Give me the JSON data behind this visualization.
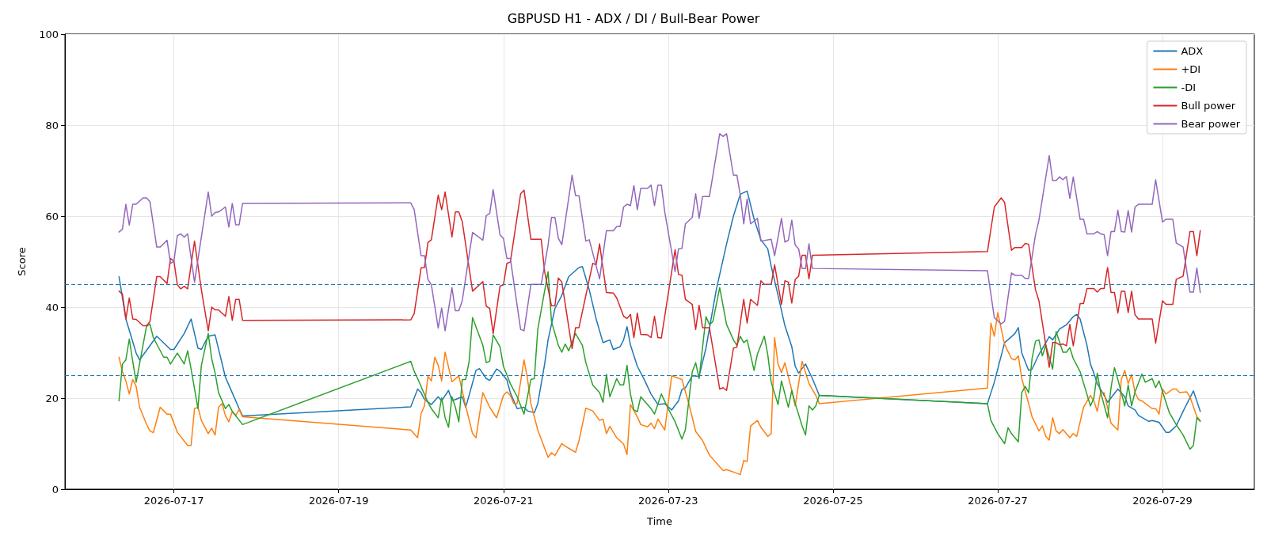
{
  "chart_data": {
    "type": "line",
    "title": "GBPUSD H1 - ADX / DI / Bull-Bear Power",
    "xlabel": "Time",
    "ylabel": "Score",
    "xlim": [
      "2026-07-15T16:15",
      "2026-07-30T02:45"
    ],
    "xticks": [
      "2026-07-17",
      "2026-07-19",
      "2026-07-21",
      "2026-07-23",
      "2026-07-25",
      "2026-07-27",
      "2026-07-29"
    ],
    "ylim": [
      0,
      100
    ],
    "yticks": [
      0,
      20,
      40,
      60,
      80,
      100
    ],
    "grid": true,
    "legend": "top right",
    "marker": "none",
    "line_style": "solid",
    "ref_lines": [
      {
        "axis": "y",
        "value": 45,
        "color": "#1f77b4",
        "line_style": "dashed"
      },
      {
        "axis": "y",
        "value": 25,
        "color": "#1f77b4",
        "line_style": "dashed"
      }
    ],
    "series": [
      {
        "name": "ADX",
        "color": "#1f77b4",
        "x": [
          "2026-07-16T08:00",
          "2026-07-16T10:00",
          "2026-07-16T13:00",
          "2026-07-16T14:00",
          "2026-07-16T19:00",
          "2026-07-16T23:00",
          "2026-07-17T00:00",
          "2026-07-17T03:00",
          "2026-07-17T05:00",
          "2026-07-17T07:00",
          "2026-07-17T08:00",
          "2026-07-17T10:00",
          "2026-07-17T12:00",
          "2026-07-17T15:00",
          "2026-07-17T16:00",
          "2026-07-17T19:00",
          "2026-07-17T20:00",
          "2026-07-19T21:00",
          "2026-07-19T23:00",
          "2026-07-20T00:00",
          "2026-07-20T01:00",
          "2026-07-20T03:00",
          "2026-07-20T05:00",
          "2026-07-20T06:00",
          "2026-07-20T08:00",
          "2026-07-20T09:00",
          "2026-07-20T10:00",
          "2026-07-20T12:00",
          "2026-07-20T13:00",
          "2026-07-20T14:00",
          "2026-07-20T16:00",
          "2026-07-20T17:00",
          "2026-07-20T19:00",
          "2026-07-20T20:00",
          "2026-07-20T22:00",
          "2026-07-20T23:00",
          "2026-07-21T01:00",
          "2026-07-21T02:00",
          "2026-07-21T04:00",
          "2026-07-21T06:00",
          "2026-07-21T07:00",
          "2026-07-21T09:00",
          "2026-07-21T10:00",
          "2026-07-21T12:00",
          "2026-07-21T13:00",
          "2026-07-21T15:00",
          "2026-07-21T17:00",
          "2026-07-21T19:00",
          "2026-07-21T22:00",
          "2026-07-21T23:00",
          "2026-07-22T01:00",
          "2026-07-22T03:00",
          "2026-07-22T05:00",
          "2026-07-22T07:00",
          "2026-07-22T08:00",
          "2026-07-22T10:00",
          "2026-07-22T11:00",
          "2026-07-22T12:00",
          "2026-07-22T13:00",
          "2026-07-22T15:00",
          "2026-07-22T17:00",
          "2026-07-22T19:00",
          "2026-07-22T21:00",
          "2026-07-22T23:00",
          "2026-07-23T01:00",
          "2026-07-23T03:00",
          "2026-07-23T04:00",
          "2026-07-23T05:00",
          "2026-07-23T07:00",
          "2026-07-23T09:00",
          "2026-07-23T11:00",
          "2026-07-23T14:00",
          "2026-07-23T17:00",
          "2026-07-23T19:00",
          "2026-07-23T21:00",
          "2026-07-23T23:00",
          "2026-07-24T01:00",
          "2026-07-24T03:00",
          "2026-07-24T05:00",
          "2026-07-24T06:00",
          "2026-07-24T08:00",
          "2026-07-24T10:00",
          "2026-07-24T12:00",
          "2026-07-24T13:00",
          "2026-07-24T14:00",
          "2026-07-24T16:00",
          "2026-07-24T18:00",
          "2026-07-24T20:00",
          "2026-07-26T21:00",
          "2026-07-26T23:00",
          "2026-07-27T02:00",
          "2026-07-27T04:00",
          "2026-07-27T05:00",
          "2026-07-27T06:00",
          "2026-07-27T07:00",
          "2026-07-27T09:00",
          "2026-07-27T10:00",
          "2026-07-27T12:00",
          "2026-07-27T15:00",
          "2026-07-27T16:00",
          "2026-07-27T18:00",
          "2026-07-27T20:00",
          "2026-07-27T22:00",
          "2026-07-27T23:00",
          "2026-07-28T00:00",
          "2026-07-28T02:00",
          "2026-07-28T03:00",
          "2026-07-28T04:00",
          "2026-07-28T05:00",
          "2026-07-28T07:00",
          "2026-07-28T08:00",
          "2026-07-28T11:00",
          "2026-07-28T13:00",
          "2026-07-28T14:00",
          "2026-07-28T16:00",
          "2026-07-28T17:00",
          "2026-07-28T20:00",
          "2026-07-28T21:00",
          "2026-07-28T23:00",
          "2026-07-29T01:00",
          "2026-07-29T02:00",
          "2026-07-29T04:00",
          "2026-07-29T06:00",
          "2026-07-29T09:00",
          "2026-07-29T11:00"
        ],
        "values": [
          46.7,
          37.4,
          29.9,
          28.4,
          33.6,
          30.7,
          30.7,
          34.2,
          37.4,
          31,
          30.7,
          33.6,
          33.9,
          24.6,
          22.9,
          17.7,
          16.1,
          18.1,
          22,
          21.2,
          19.7,
          18.6,
          20.3,
          19.4,
          21.7,
          19.5,
          19.7,
          20.3,
          18,
          20.6,
          26.1,
          26.5,
          24.3,
          23.9,
          26.4,
          25.9,
          24,
          21.2,
          17.7,
          18,
          17.2,
          16.8,
          18.8,
          27.5,
          32.8,
          39.7,
          42.6,
          46.7,
          48.7,
          48.9,
          43.8,
          37.4,
          32.2,
          32.8,
          30.7,
          31.3,
          32.8,
          35.7,
          31.7,
          27,
          24.1,
          20.9,
          18.6,
          18.8,
          17.4,
          19.4,
          21.9,
          22.3,
          24.9,
          24.8,
          31,
          43.8,
          53.9,
          60,
          64.8,
          65.5,
          59.4,
          54.8,
          52.8,
          49,
          42.6,
          35.9,
          31.3,
          27,
          25.5,
          27.5,
          24.3,
          20.6,
          18.8,
          23.5,
          32.2,
          33.5,
          34.2,
          35.5,
          29.9,
          26.1,
          26.4,
          29.6,
          33.5,
          32.8,
          35.2,
          36.1,
          37.9,
          38.4,
          37.4,
          31.6,
          27.5,
          25.5,
          23.2,
          20.6,
          19.1,
          22,
          20.3,
          18.3,
          17.4,
          16.2,
          14.9,
          15.1,
          14.7,
          12.5,
          12.5,
          13.9,
          17.1,
          21.6,
          17.1
        ]
      },
      {
        "name": "+DI",
        "color": "#ff7f0e",
        "x": [
          "2026-07-16T08:00",
          "2026-07-16T09:00",
          "2026-07-16T10:00",
          "2026-07-16T11:00",
          "2026-07-16T12:00",
          "2026-07-16T13:00",
          "2026-07-16T14:00",
          "2026-07-16T16:00",
          "2026-07-16T17:00",
          "2026-07-16T18:00",
          "2026-07-16T20:00",
          "2026-07-16T22:00",
          "2026-07-16T23:00",
          "2026-07-17T01:00",
          "2026-07-17T04:00",
          "2026-07-17T05:00",
          "2026-07-17T06:00",
          "2026-07-17T07:00",
          "2026-07-17T08:00",
          "2026-07-17T10:00",
          "2026-07-17T11:00",
          "2026-07-17T12:00",
          "2026-07-17T13:00",
          "2026-07-17T14:00",
          "2026-07-17T15:00",
          "2026-07-17T16:00",
          "2026-07-17T17:00",
          "2026-07-17T18:00",
          "2026-07-17T19:00",
          "2026-07-17T20:00",
          "2026-07-19T21:00",
          "2026-07-19T23:00",
          "2026-07-20T00:00",
          "2026-07-20T01:00",
          "2026-07-20T02:00",
          "2026-07-20T03:00",
          "2026-07-20T04:00",
          "2026-07-20T05:00",
          "2026-07-20T06:00",
          "2026-07-20T07:00",
          "2026-07-20T09:00",
          "2026-07-20T11:00",
          "2026-07-20T13:00",
          "2026-07-20T15:00",
          "2026-07-20T16:00",
          "2026-07-20T18:00",
          "2026-07-20T20:00",
          "2026-07-20T22:00",
          "2026-07-21T00:00",
          "2026-07-21T01:00",
          "2026-07-21T02:00",
          "2026-07-21T03:00",
          "2026-07-21T04:00",
          "2026-07-21T06:00",
          "2026-07-21T07:00",
          "2026-07-21T08:00",
          "2026-07-21T10:00",
          "2026-07-21T13:00",
          "2026-07-21T14:00",
          "2026-07-21T15:00",
          "2026-07-21T17:00",
          "2026-07-21T19:00",
          "2026-07-21T21:00",
          "2026-07-21T22:00",
          "2026-07-22T00:00",
          "2026-07-22T02:00",
          "2026-07-22T04:00",
          "2026-07-22T05:00",
          "2026-07-22T06:00",
          "2026-07-22T07:00",
          "2026-07-22T09:00",
          "2026-07-22T11:00",
          "2026-07-22T12:00",
          "2026-07-22T13:00",
          "2026-07-22T15:00",
          "2026-07-22T16:00",
          "2026-07-22T18:00",
          "2026-07-22T19:00",
          "2026-07-22T20:00",
          "2026-07-22T21:00",
          "2026-07-22T22:00",
          "2026-07-22T23:00",
          "2026-07-23T01:00",
          "2026-07-23T04:00",
          "2026-07-23T06:00",
          "2026-07-23T08:00",
          "2026-07-23T10:00",
          "2026-07-23T12:00",
          "2026-07-23T15:00",
          "2026-07-23T16:00",
          "2026-07-23T17:00",
          "2026-07-23T20:00",
          "2026-07-23T21:00",
          "2026-07-23T22:00",
          "2026-07-23T23:00",
          "2026-07-24T00:00",
          "2026-07-24T02:00",
          "2026-07-24T03:00",
          "2026-07-24T05:00",
          "2026-07-24T06:00",
          "2026-07-24T07:00",
          "2026-07-24T08:00",
          "2026-07-24T09:00",
          "2026-07-24T10:00",
          "2026-07-24T12:00",
          "2026-07-24T13:00",
          "2026-07-24T15:00",
          "2026-07-24T17:00",
          "2026-07-24T19:00",
          "2026-07-24T20:00",
          "2026-07-26T21:00",
          "2026-07-26T22:00",
          "2026-07-26T23:00",
          "2026-07-27T00:00",
          "2026-07-27T02:00",
          "2026-07-27T04:00",
          "2026-07-27T05:00",
          "2026-07-27T06:00",
          "2026-07-27T07:00",
          "2026-07-27T09:00",
          "2026-07-27T10:00",
          "2026-07-27T12:00",
          "2026-07-27T13:00",
          "2026-07-27T14:00",
          "2026-07-27T15:00",
          "2026-07-27T16:00",
          "2026-07-27T17:00",
          "2026-07-27T18:00",
          "2026-07-27T19:00",
          "2026-07-27T21:00",
          "2026-07-27T22:00",
          "2026-07-27T23:00",
          "2026-07-28T01:00",
          "2026-07-28T03:00",
          "2026-07-28T04:00",
          "2026-07-28T05:00",
          "2026-07-28T06:00",
          "2026-07-28T07:00",
          "2026-07-28T09:00",
          "2026-07-28T11:00",
          "2026-07-28T12:00",
          "2026-07-28T13:00",
          "2026-07-28T14:00",
          "2026-07-28T15:00",
          "2026-07-28T16:00",
          "2026-07-28T17:00",
          "2026-07-28T18:00",
          "2026-07-28T21:00",
          "2026-07-28T22:00",
          "2026-07-28T23:00",
          "2026-07-29T00:00",
          "2026-07-29T01:00",
          "2026-07-29T03:00",
          "2026-07-29T04:00",
          "2026-07-29T05:00",
          "2026-07-29T07:00",
          "2026-07-29T08:00",
          "2026-07-29T10:00",
          "2026-07-29T11:00"
        ],
        "values": [
          29,
          25.8,
          23.8,
          20.9,
          24.1,
          22.6,
          18,
          14.3,
          12.8,
          12.4,
          18,
          16.5,
          16.5,
          12.5,
          9.6,
          9.6,
          17.7,
          18,
          15.1,
          12.2,
          13.4,
          11.9,
          18,
          18.8,
          16.2,
          14.8,
          17.1,
          16.2,
          17.5,
          15.9,
          13,
          11.3,
          16.6,
          18.3,
          24.8,
          23.8,
          29,
          27.2,
          23.8,
          30.1,
          23.6,
          24.9,
          18.3,
          12.2,
          11.3,
          21.2,
          18,
          15.7,
          20.6,
          21.4,
          20.6,
          18.8,
          18.8,
          28.4,
          24.3,
          18.8,
          13,
          7,
          8,
          7.4,
          10,
          9,
          8.1,
          10.6,
          17.8,
          17.2,
          15.1,
          15.4,
          12.2,
          13.8,
          11.3,
          9.9,
          7.6,
          18.6,
          15.9,
          14.2,
          13.7,
          14.5,
          13.3,
          15.4,
          14.2,
          13,
          24.9,
          24.1,
          18.8,
          12.7,
          10.7,
          7.5,
          4.9,
          4.1,
          4.3,
          3.5,
          3.2,
          6.3,
          6.1,
          13.9,
          15.1,
          13.6,
          11.6,
          12.2,
          33.3,
          27.5,
          25.6,
          27.8,
          21.7,
          18.3,
          28.1,
          23.2,
          20.6,
          18.8,
          22.2,
          36.5,
          33.6,
          38.8,
          31.8,
          28.7,
          28.4,
          29.3,
          24.3,
          18.8,
          15.9,
          12.8,
          13.9,
          11.6,
          10.8,
          15.7,
          12.8,
          12.2,
          13.1,
          11.3,
          12.2,
          11.6,
          18,
          20.6,
          19.4,
          17.1,
          21.4,
          21.2,
          14.5,
          13,
          24.1,
          26.1,
          23.2,
          25.2,
          21.2,
          19.7,
          19.4,
          17.7,
          17.7,
          16.5,
          22,
          20.9,
          22,
          22,
          21.2,
          21.4,
          20.3,
          15.9,
          15.1
        ]
      },
      {
        "name": "-DI",
        "color": "#2ca02c",
        "x": [
          "2026-07-16T08:00",
          "2026-07-16T09:00",
          "2026-07-16T10:00",
          "2026-07-16T11:00",
          "2026-07-16T12:00",
          "2026-07-16T13:00",
          "2026-07-16T16:00",
          "2026-07-16T17:00",
          "2026-07-16T18:00",
          "2026-07-16T21:00",
          "2026-07-16T22:00",
          "2026-07-16T23:00",
          "2026-07-17T01:00",
          "2026-07-17T03:00",
          "2026-07-17T04:00",
          "2026-07-17T05:00",
          "2026-07-17T07:00",
          "2026-07-17T08:00",
          "2026-07-17T10:00",
          "2026-07-17T11:00",
          "2026-07-17T12:00",
          "2026-07-17T13:00",
          "2026-07-17T15:00",
          "2026-07-17T16:00",
          "2026-07-17T17:00",
          "2026-07-17T20:00",
          "2026-07-19T21:00",
          "2026-07-19T22:00",
          "2026-07-19T23:00",
          "2026-07-20T02:00",
          "2026-07-20T03:00",
          "2026-07-20T05:00",
          "2026-07-20T06:00",
          "2026-07-20T07:00",
          "2026-07-20T08:00",
          "2026-07-20T09:00",
          "2026-07-20T10:00",
          "2026-07-20T11:00",
          "2026-07-20T12:00",
          "2026-07-20T13:00",
          "2026-07-20T14:00",
          "2026-07-20T15:00",
          "2026-07-20T18:00",
          "2026-07-20T19:00",
          "2026-07-20T20:00",
          "2026-07-20T21:00",
          "2026-07-20T23:00",
          "2026-07-21T00:00",
          "2026-07-21T02:00",
          "2026-07-21T04:00",
          "2026-07-21T06:00",
          "2026-07-21T08:00",
          "2026-07-21T09:00",
          "2026-07-21T10:00",
          "2026-07-21T13:00",
          "2026-07-21T14:00",
          "2026-07-21T16:00",
          "2026-07-21T17:00",
          "2026-07-21T18:00",
          "2026-07-21T19:00",
          "2026-07-21T21:00",
          "2026-07-21T23:00",
          "2026-07-22T00:00",
          "2026-07-22T02:00",
          "2026-07-22T04:00",
          "2026-07-22T05:00",
          "2026-07-22T06:00",
          "2026-07-22T07:00",
          "2026-07-22T09:00",
          "2026-07-22T10:00",
          "2026-07-22T11:00",
          "2026-07-22T12:00",
          "2026-07-22T13:00",
          "2026-07-22T14:00",
          "2026-07-22T15:00",
          "2026-07-22T16:00",
          "2026-07-22T19:00",
          "2026-07-22T20:00",
          "2026-07-22T22:00",
          "2026-07-23T00:00",
          "2026-07-23T02:00",
          "2026-07-23T04:00",
          "2026-07-23T05:00",
          "2026-07-23T07:00",
          "2026-07-23T08:00",
          "2026-07-23T09:00",
          "2026-07-23T11:00",
          "2026-07-23T12:00",
          "2026-07-23T13:00",
          "2026-07-23T15:00",
          "2026-07-23T17:00",
          "2026-07-23T19:00",
          "2026-07-23T20:00",
          "2026-07-23T21:00",
          "2026-07-23T22:00",
          "2026-07-23T23:00",
          "2026-07-24T01:00",
          "2026-07-24T02:00",
          "2026-07-24T04:00",
          "2026-07-24T05:00",
          "2026-07-24T06:00",
          "2026-07-24T08:00",
          "2026-07-24T09:00",
          "2026-07-24T11:00",
          "2026-07-24T12:00",
          "2026-07-24T13:00",
          "2026-07-24T15:00",
          "2026-07-24T16:00",
          "2026-07-24T17:00",
          "2026-07-24T18:00",
          "2026-07-24T19:00",
          "2026-07-24T20:00",
          "2026-07-26T21:00",
          "2026-07-26T22:00",
          "2026-07-27T00:00",
          "2026-07-27T02:00",
          "2026-07-27T03:00",
          "2026-07-27T04:00",
          "2026-07-27T06:00",
          "2026-07-27T07:00",
          "2026-07-27T08:00",
          "2026-07-27T09:00",
          "2026-07-27T10:00",
          "2026-07-27T11:00",
          "2026-07-27T12:00",
          "2026-07-27T13:00",
          "2026-07-27T14:00",
          "2026-07-27T16:00",
          "2026-07-27T17:00",
          "2026-07-27T19:00",
          "2026-07-27T20:00",
          "2026-07-27T21:00",
          "2026-07-27T22:00",
          "2026-07-28T00:00",
          "2026-07-28T03:00",
          "2026-07-28T04:00",
          "2026-07-28T05:00",
          "2026-07-28T06:00",
          "2026-07-28T08:00",
          "2026-07-28T09:00",
          "2026-07-28T10:00",
          "2026-07-28T11:00",
          "2026-07-28T13:00",
          "2026-07-28T14:00",
          "2026-07-28T15:00",
          "2026-07-28T16:00",
          "2026-07-28T18:00",
          "2026-07-28T19:00",
          "2026-07-28T21:00",
          "2026-07-28T22:00",
          "2026-07-28T23:00",
          "2026-07-29T01:00",
          "2026-07-29T02:00",
          "2026-07-29T04:00",
          "2026-07-29T06:00",
          "2026-07-29T08:00",
          "2026-07-29T09:00",
          "2026-07-29T10:00",
          "2026-07-29T11:00"
        ],
        "values": [
          19.4,
          27.5,
          28.4,
          33,
          28.1,
          23.5,
          35.7,
          36.3,
          33.3,
          29,
          29,
          27.5,
          29.9,
          27.5,
          30.4,
          26.4,
          17.7,
          27.2,
          34.2,
          28.7,
          25.5,
          21.2,
          17.7,
          18.6,
          17.1,
          14.2,
          28.1,
          25.9,
          24.3,
          19.1,
          17.7,
          15.7,
          20.1,
          15.7,
          13.6,
          20.3,
          18,
          14.8,
          24.1,
          24.1,
          28.1,
          37.7,
          31.6,
          27.8,
          28.1,
          33.9,
          31.3,
          27,
          23.2,
          20.3,
          16.5,
          24.1,
          24.3,
          35.1,
          47.8,
          36.8,
          31.6,
          30.1,
          31.9,
          30.4,
          34.2,
          31.6,
          27.8,
          22.9,
          21.2,
          19.1,
          25.2,
          20.3,
          24.3,
          22.9,
          22.9,
          27.2,
          20.9,
          17.4,
          17,
          20.3,
          17.7,
          16.5,
          20.9,
          17.7,
          14.8,
          11,
          13.1,
          25.8,
          27.8,
          24.3,
          37.9,
          36.2,
          36.8,
          44.3,
          36.2,
          32.8,
          31.6,
          33.6,
          32.2,
          32.8,
          26.1,
          29.7,
          33.6,
          29.6,
          23.5,
          18.6,
          23.8,
          18,
          21.7,
          18.8,
          13.9,
          11.9,
          18.3,
          17.4,
          18.3,
          20.6,
          18.8,
          15.1,
          12.2,
          10,
          13.5,
          12.2,
          10.4,
          21.2,
          22.6,
          21.2,
          28.7,
          32.5,
          32.8,
          29.3,
          31.6,
          26.4,
          34.6,
          30.1,
          30.1,
          31.1,
          28.7,
          25.8,
          18.3,
          20,
          25.5,
          21.2,
          15.7,
          22.3,
          26.7,
          24.1,
          18.3,
          22.9,
          18.3,
          21.4,
          25.3,
          23.5,
          24.3,
          22.3,
          23.8,
          19.1,
          16.8,
          14.2,
          11.9,
          8.8,
          9.6,
          15.7,
          14.9
        ]
      },
      {
        "name": "Bull power",
        "color": "#d62728",
        "x": [
          "2026-07-16T08:00",
          "2026-07-16T09:00",
          "2026-07-16T10:00",
          "2026-07-16T11:00",
          "2026-07-16T12:00",
          "2026-07-16T13:00",
          "2026-07-16T15:00",
          "2026-07-16T16:00",
          "2026-07-16T17:00",
          "2026-07-16T19:00",
          "2026-07-16T20:00",
          "2026-07-16T22:00",
          "2026-07-16T23:00",
          "2026-07-17T00:00",
          "2026-07-17T01:00",
          "2026-07-17T02:00",
          "2026-07-17T03:00",
          "2026-07-17T04:00",
          "2026-07-17T06:00",
          "2026-07-17T08:00",
          "2026-07-17T10:00",
          "2026-07-17T11:00",
          "2026-07-17T12:00",
          "2026-07-17T13:00",
          "2026-07-17T15:00",
          "2026-07-17T16:00",
          "2026-07-17T17:00",
          "2026-07-17T18:00",
          "2026-07-17T19:00",
          "2026-07-17T20:00",
          "2026-07-19T21:00",
          "2026-07-19T22:00",
          "2026-07-20T00:00",
          "2026-07-20T01:00",
          "2026-07-20T02:00",
          "2026-07-20T03:00",
          "2026-07-20T05:00",
          "2026-07-20T06:00",
          "2026-07-20T07:00",
          "2026-07-20T09:00",
          "2026-07-20T10:00",
          "2026-07-20T11:00",
          "2026-07-20T12:00",
          "2026-07-20T15:00",
          "2026-07-20T18:00",
          "2026-07-20T19:00",
          "2026-07-20T20:00",
          "2026-07-20T21:00",
          "2026-07-20T23:00",
          "2026-07-21T00:00",
          "2026-07-21T01:00",
          "2026-07-21T02:00",
          "2026-07-21T05:00",
          "2026-07-21T06:00",
          "2026-07-21T08:00",
          "2026-07-21T11:00",
          "2026-07-21T12:00",
          "2026-07-21T14:00",
          "2026-07-21T15:00",
          "2026-07-21T16:00",
          "2026-07-21T17:00",
          "2026-07-21T20:00",
          "2026-07-21T21:00",
          "2026-07-21T22:00",
          "2026-07-22T02:00",
          "2026-07-22T03:00",
          "2026-07-22T04:00",
          "2026-07-22T06:00",
          "2026-07-22T08:00",
          "2026-07-22T09:00",
          "2026-07-22T11:00",
          "2026-07-22T12:00",
          "2026-07-22T13:00",
          "2026-07-22T14:00",
          "2026-07-22T15:00",
          "2026-07-22T16:00",
          "2026-07-22T18:00",
          "2026-07-22T19:00",
          "2026-07-22T20:00",
          "2026-07-22T21:00",
          "2026-07-22T22:00",
          "2026-07-23T02:00",
          "2026-07-23T03:00",
          "2026-07-23T04:00",
          "2026-07-23T05:00",
          "2026-07-23T07:00",
          "2026-07-23T08:00",
          "2026-07-23T09:00",
          "2026-07-23T10:00",
          "2026-07-23T12:00",
          "2026-07-23T15:00",
          "2026-07-23T16:00",
          "2026-07-23T17:00",
          "2026-07-23T19:00",
          "2026-07-23T20:00",
          "2026-07-23T22:00",
          "2026-07-23T23:00",
          "2026-07-24T00:00",
          "2026-07-24T02:00",
          "2026-07-24T03:00",
          "2026-07-24T04:00",
          "2026-07-24T06:00",
          "2026-07-24T07:00",
          "2026-07-24T09:00",
          "2026-07-24T10:00",
          "2026-07-24T11:00",
          "2026-07-24T12:00",
          "2026-07-24T13:00",
          "2026-07-24T14:00",
          "2026-07-24T15:00",
          "2026-07-24T16:00",
          "2026-07-24T17:00",
          "2026-07-24T18:00",
          "2026-07-26T21:00",
          "2026-07-26T23:00",
          "2026-07-27T01:00",
          "2026-07-27T02:00",
          "2026-07-27T04:00",
          "2026-07-27T05:00",
          "2026-07-27T07:00",
          "2026-07-27T08:00",
          "2026-07-27T09:00",
          "2026-07-27T11:00",
          "2026-07-27T12:00",
          "2026-07-27T15:00",
          "2026-07-27T16:00",
          "2026-07-27T17:00",
          "2026-07-27T18:00",
          "2026-07-27T19:00",
          "2026-07-27T20:00",
          "2026-07-27T21:00",
          "2026-07-27T22:00",
          "2026-07-28T00:00",
          "2026-07-28T01:00",
          "2026-07-28T02:00",
          "2026-07-28T04:00",
          "2026-07-28T05:00",
          "2026-07-28T06:00",
          "2026-07-28T07:00",
          "2026-07-28T08:00",
          "2026-07-28T09:00",
          "2026-07-28T10:00",
          "2026-07-28T11:00",
          "2026-07-28T12:00",
          "2026-07-28T13:00",
          "2026-07-28T14:00",
          "2026-07-28T15:00",
          "2026-07-28T16:00",
          "2026-07-28T17:00",
          "2026-07-28T21:00",
          "2026-07-28T22:00",
          "2026-07-29T00:00",
          "2026-07-29T01:00",
          "2026-07-29T03:00",
          "2026-07-29T04:00",
          "2026-07-29T06:00",
          "2026-07-29T08:00",
          "2026-07-29T09:00",
          "2026-07-29T10:00",
          "2026-07-29T11:00"
        ],
        "values": [
          43.5,
          42.9,
          37.4,
          42,
          37.4,
          37.3,
          35.9,
          35.9,
          36.8,
          46.7,
          46.7,
          45.2,
          50.7,
          50.1,
          44.9,
          44,
          44.6,
          44,
          54.5,
          43.8,
          34.8,
          40,
          39.4,
          39.4,
          38,
          42.3,
          37.1,
          41.7,
          41.7,
          37.1,
          37.2,
          38.6,
          48.6,
          48.7,
          54.2,
          54.8,
          64.6,
          61.4,
          65.3,
          55.4,
          60.9,
          60.9,
          58.8,
          43.5,
          45.6,
          40.2,
          39.7,
          34.2,
          44.6,
          44.9,
          49.6,
          49.9,
          64.9,
          65.7,
          54.9,
          54.9,
          47.8,
          40.3,
          40.3,
          46.4,
          45.5,
          30.9,
          35.5,
          35.5,
          49.6,
          49.3,
          53.9,
          43.2,
          43.1,
          42,
          38,
          37.5,
          38.4,
          33.3,
          38.7,
          34,
          33.9,
          33.3,
          38,
          33.3,
          33.2,
          52.6,
          47.2,
          47,
          41.7,
          40.6,
          35.1,
          40.4,
          35.5,
          35.5,
          22,
          22.3,
          21.7,
          31,
          31.2,
          41.7,
          36.5,
          41.7,
          40.4,
          45.8,
          45,
          45,
          49.3,
          40.6,
          45.8,
          45.5,
          40.9,
          46.1,
          46.8,
          51.4,
          51.4,
          46.2,
          51.4,
          52.2,
          62,
          64,
          63,
          52.5,
          53.1,
          53.1,
          54,
          53.8,
          43.8,
          41.4,
          26.8,
          32.2,
          32.2,
          31.7,
          31.9,
          31.5,
          36.2,
          31.5,
          40.8,
          40.8,
          44.1,
          44.1,
          43.3,
          44.1,
          44.1,
          48.7,
          43.2,
          43.2,
          38.7,
          43.5,
          43.5,
          38.8,
          43.5,
          38.3,
          37.4,
          37.4,
          32.1,
          41.4,
          40.6,
          40.6,
          46.1,
          46.8,
          56.6,
          56.6,
          51.3,
          56.8
        ]
      },
      {
        "name": "Bear power",
        "color": "#9467bd",
        "x": [
          "2026-07-16T08:00",
          "2026-07-16T09:00",
          "2026-07-16T10:00",
          "2026-07-16T11:00",
          "2026-07-16T12:00",
          "2026-07-16T13:00",
          "2026-07-16T15:00",
          "2026-07-16T16:00",
          "2026-07-16T17:00",
          "2026-07-16T19:00",
          "2026-07-16T20:00",
          "2026-07-16T22:00",
          "2026-07-16T23:00",
          "2026-07-17T00:00",
          "2026-07-17T01:00",
          "2026-07-17T02:00",
          "2026-07-17T03:00",
          "2026-07-17T04:00",
          "2026-07-17T06:00",
          "2026-07-17T08:00",
          "2026-07-17T10:00",
          "2026-07-17T11:00",
          "2026-07-17T12:00",
          "2026-07-17T13:00",
          "2026-07-17T15:00",
          "2026-07-17T16:00",
          "2026-07-17T17:00",
          "2026-07-17T18:00",
          "2026-07-17T19:00",
          "2026-07-17T20:00",
          "2026-07-19T21:00",
          "2026-07-19T22:00",
          "2026-07-20T00:00",
          "2026-07-20T01:00",
          "2026-07-20T02:00",
          "2026-07-20T03:00",
          "2026-07-20T05:00",
          "2026-07-20T06:00",
          "2026-07-20T07:00",
          "2026-07-20T09:00",
          "2026-07-20T10:00",
          "2026-07-20T11:00",
          "2026-07-20T12:00",
          "2026-07-20T15:00",
          "2026-07-20T18:00",
          "2026-07-20T19:00",
          "2026-07-20T20:00",
          "2026-07-20T21:00",
          "2026-07-20T23:00",
          "2026-07-21T00:00",
          "2026-07-21T01:00",
          "2026-07-21T02:00",
          "2026-07-21T05:00",
          "2026-07-21T06:00",
          "2026-07-21T08:00",
          "2026-07-21T11:00",
          "2026-07-21T13:00",
          "2026-07-21T14:00",
          "2026-07-21T15:00",
          "2026-07-21T16:00",
          "2026-07-21T17:00",
          "2026-07-21T20:00",
          "2026-07-21T21:00",
          "2026-07-21T22:00",
          "2026-07-22T00:00",
          "2026-07-22T01:00",
          "2026-07-22T04:00",
          "2026-07-22T06:00",
          "2026-07-22T08:00",
          "2026-07-22T09:00",
          "2026-07-22T10:00",
          "2026-07-22T11:00",
          "2026-07-22T12:00",
          "2026-07-22T13:00",
          "2026-07-22T14:00",
          "2026-07-22T15:00",
          "2026-07-22T16:00",
          "2026-07-22T18:00",
          "2026-07-22T19:00",
          "2026-07-22T20:00",
          "2026-07-22T21:00",
          "2026-07-22T22:00",
          "2026-07-22T23:00",
          "2026-07-23T02:00",
          "2026-07-23T03:00",
          "2026-07-23T04:00",
          "2026-07-23T05:00",
          "2026-07-23T07:00",
          "2026-07-23T08:00",
          "2026-07-23T09:00",
          "2026-07-23T10:00",
          "2026-07-23T12:00",
          "2026-07-23T15:00",
          "2026-07-23T16:00",
          "2026-07-23T17:00",
          "2026-07-23T19:00",
          "2026-07-23T20:00",
          "2026-07-23T21:00",
          "2026-07-23T22:00",
          "2026-07-23T23:00",
          "2026-07-24T00:00",
          "2026-07-24T02:00",
          "2026-07-24T03:00",
          "2026-07-24T06:00",
          "2026-07-24T07:00",
          "2026-07-24T09:00",
          "2026-07-24T10:00",
          "2026-07-24T11:00",
          "2026-07-24T12:00",
          "2026-07-24T13:00",
          "2026-07-24T14:00",
          "2026-07-24T15:00",
          "2026-07-24T16:00",
          "2026-07-24T17:00",
          "2026-07-24T18:00",
          "2026-07-26T21:00",
          "2026-07-26T23:00",
          "2026-07-27T01:00",
          "2026-07-27T02:00",
          "2026-07-27T04:00",
          "2026-07-27T05:00",
          "2026-07-27T07:00",
          "2026-07-27T08:00",
          "2026-07-27T09:00",
          "2026-07-27T11:00",
          "2026-07-27T12:00",
          "2026-07-27T15:00",
          "2026-07-27T16:00",
          "2026-07-27T17:00",
          "2026-07-27T18:00",
          "2026-07-27T19:00",
          "2026-07-27T20:00",
          "2026-07-27T21:00",
          "2026-07-27T22:00",
          "2026-07-28T00:00",
          "2026-07-28T01:00",
          "2026-07-28T02:00",
          "2026-07-28T04:00",
          "2026-07-28T05:00",
          "2026-07-28T06:00",
          "2026-07-28T07:00",
          "2026-07-28T08:00",
          "2026-07-28T09:00",
          "2026-07-28T10:00",
          "2026-07-28T11:00",
          "2026-07-28T12:00",
          "2026-07-28T13:00",
          "2026-07-28T14:00",
          "2026-07-28T15:00",
          "2026-07-28T16:00",
          "2026-07-28T17:00",
          "2026-07-28T21:00",
          "2026-07-28T22:00",
          "2026-07-29T00:00",
          "2026-07-29T01:00",
          "2026-07-29T03:00",
          "2026-07-29T04:00",
          "2026-07-29T06:00",
          "2026-07-29T08:00",
          "2026-07-29T09:00",
          "2026-07-29T10:00",
          "2026-07-29T11:00"
        ],
        "values": [
          56.5,
          57.1,
          62.6,
          58,
          62.6,
          62.6,
          64,
          64,
          63.2,
          53.2,
          53.2,
          54.7,
          49.6,
          50.1,
          55.7,
          56.1,
          55.4,
          56.1,
          45.5,
          55.4,
          65.3,
          60,
          60.8,
          60.9,
          62,
          57.6,
          62.8,
          58.1,
          58.1,
          62.8,
          62.9,
          61.4,
          51.3,
          51.3,
          46.1,
          44.9,
          35.4,
          39.8,
          34.8,
          44.3,
          39.2,
          39.2,
          41.4,
          56.4,
          54.7,
          60.1,
          60.6,
          65.8,
          55.9,
          55.1,
          50.7,
          50.7,
          35.1,
          34.8,
          45,
          45,
          53.6,
          59.7,
          59.7,
          55.1,
          53.7,
          69,
          64.5,
          64.5,
          54.5,
          54.8,
          46.2,
          56.8,
          56.8,
          57.7,
          57.7,
          62,
          62.6,
          62.3,
          66.7,
          61.4,
          66.1,
          66.1,
          66.8,
          62.3,
          66.8,
          66.8,
          60.9,
          47.8,
          52.8,
          52.9,
          58.3,
          59.7,
          64.9,
          59.5,
          64.3,
          64.3,
          78.1,
          77.5,
          78.1,
          69,
          69,
          64.6,
          58.3,
          63.8,
          58.3,
          59.5,
          54.5,
          54.9,
          51.3,
          59.5,
          54.3,
          54.7,
          59.1,
          53.6,
          52.8,
          48.5,
          48.5,
          53.9,
          48.5,
          48,
          37.7,
          36.3,
          36.9,
          47.5,
          47,
          47,
          46.3,
          46.3,
          55.9,
          59.1,
          73.3,
          67.8,
          67.8,
          68.6,
          68,
          68.7,
          63.9,
          68.6,
          59.3,
          59.3,
          56.1,
          56.1,
          56.6,
          56.1,
          55.9,
          51.3,
          56.6,
          56.6,
          61.3,
          56.6,
          56.5,
          61.2,
          56.5,
          62,
          62.6,
          62.6,
          68,
          58.7,
          59.3,
          59.3,
          54.1,
          53.2,
          43.3,
          43.3,
          48.6,
          43.2
        ]
      }
    ]
  }
}
